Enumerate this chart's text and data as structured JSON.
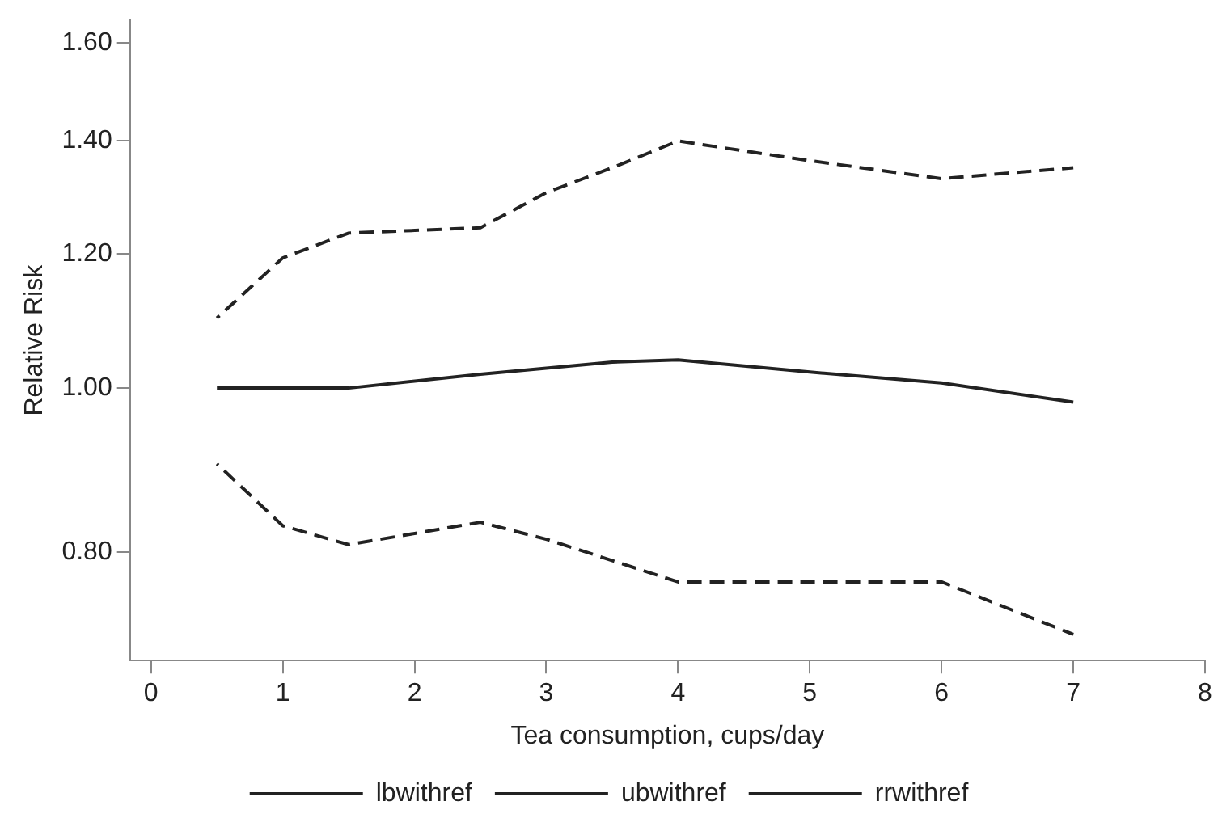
{
  "chart_data": {
    "type": "line",
    "xlabel": "Tea consumption, cups/day",
    "ylabel": "Relative Risk",
    "xlim": [
      -0.16,
      8
    ],
    "xticks": [
      0,
      1,
      2,
      3,
      4,
      5,
      6,
      7,
      8
    ],
    "ylim": [
      0.69,
      1.65
    ],
    "yticks": [
      {
        "value": 0.8,
        "label": "0.80"
      },
      {
        "value": 1.0,
        "label": "1.00"
      },
      {
        "value": 1.2,
        "label": "1.20"
      },
      {
        "value": 1.4,
        "label": "1.40"
      },
      {
        "value": 1.6,
        "label": "1.60"
      }
    ],
    "log": "y",
    "grid": false,
    "legend": "bottom",
    "marker": "none",
    "series": [
      {
        "name": "lbwithref",
        "color": "#222222",
        "line_style": "dashed",
        "x": [
          0.5,
          1,
          1.5,
          2.5,
          3,
          4,
          6,
          7
        ],
        "values": [
          0.902,
          0.829,
          0.808,
          0.833,
          0.814,
          0.768,
          0.768,
          0.715
        ]
      },
      {
        "name": "ubwithref",
        "color": "#222222",
        "line_style": "dashed",
        "x": [
          0.5,
          1,
          1.5,
          2.5,
          3,
          3.5,
          4,
          5,
          6,
          6.5,
          7
        ],
        "values": [
          1.1,
          1.194,
          1.235,
          1.244,
          1.305,
          1.35,
          1.4,
          1.363,
          1.33,
          1.34,
          1.35
        ]
      },
      {
        "name": "rrwithref",
        "color": "#222222",
        "line_style": "solid",
        "x": [
          0.5,
          1.5,
          2.5,
          3.5,
          4,
          5,
          6,
          7
        ],
        "values": [
          1.0,
          1.0,
          1.019,
          1.036,
          1.039,
          1.022,
          1.007,
          0.981
        ]
      }
    ]
  }
}
